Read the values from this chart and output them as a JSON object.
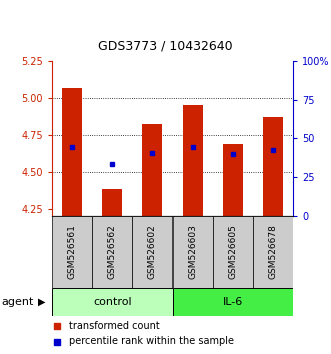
{
  "title": "GDS3773 / 10432640",
  "samples": [
    "GSM526561",
    "GSM526562",
    "GSM526602",
    "GSM526603",
    "GSM526605",
    "GSM526678"
  ],
  "bar_tops": [
    5.07,
    4.38,
    4.82,
    4.95,
    4.69,
    4.87
  ],
  "bar_bottom": 4.2,
  "percentile_values": [
    4.67,
    4.55,
    4.63,
    4.67,
    4.62,
    4.65
  ],
  "ylim": [
    4.2,
    5.25
  ],
  "yticks_left": [
    4.25,
    4.5,
    4.75,
    5.0,
    5.25
  ],
  "yticks_right": [
    0,
    25,
    50,
    75,
    100
  ],
  "hlines": [
    4.5,
    4.75,
    5.0
  ],
  "bar_color": "#cc2200",
  "dot_color": "#0000cc",
  "left_axis_color": "#cc2200",
  "right_axis_color": "#0000cc",
  "title_color": "#000000",
  "legend_bar_label": "transformed count",
  "legend_dot_label": "percentile rank within the sample",
  "control_color": "#bbffbb",
  "il6_color": "#44ee44",
  "gray_box_color": "#cccccc",
  "agent_label": "agent"
}
